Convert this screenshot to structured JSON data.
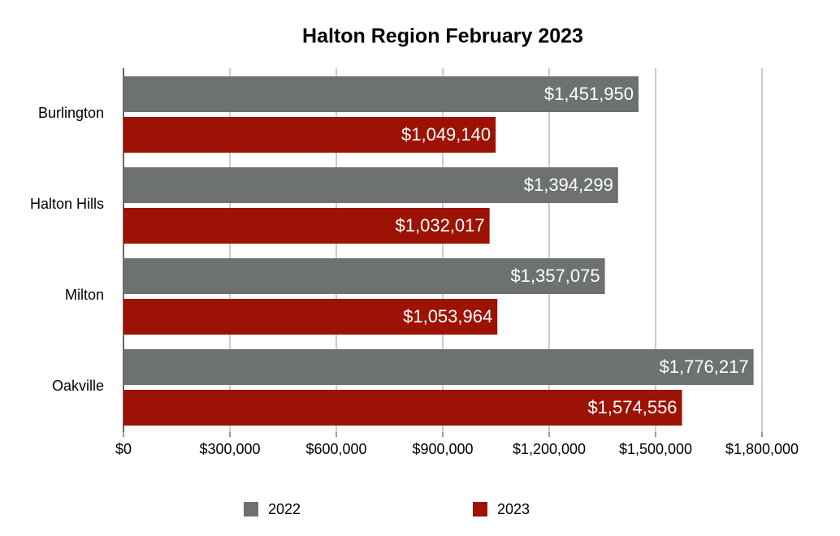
{
  "chart_data": {
    "type": "hbar",
    "title": "Halton Region February 2023",
    "categories": [
      "Burlington",
      "Halton Hills",
      "Milton",
      "Oakville"
    ],
    "series": [
      {
        "name": "2022",
        "color": "#6d726e",
        "values": [
          1451950,
          1394299,
          1357075,
          1776217
        ],
        "value_labels": [
          "$1,451,950",
          "$1,394,299",
          "$1,357,075",
          "$1,776,217"
        ]
      },
      {
        "name": "2023",
        "color": "#9c1306",
        "values": [
          1049140,
          1032017,
          1053964,
          1574556
        ],
        "value_labels": [
          "$1,049,140",
          "$1,032,017",
          "$1,053,964",
          "$1,574,556"
        ]
      }
    ],
    "xlim": [
      0,
      1800000
    ],
    "xticks": [
      {
        "value": 0,
        "label": "$0"
      },
      {
        "value": 300000,
        "label": "$300,000"
      },
      {
        "value": 600000,
        "label": "$600,000"
      },
      {
        "value": 900000,
        "label": "$900,000"
      },
      {
        "value": 1200000,
        "label": "$1,200,000"
      },
      {
        "value": 1500000,
        "label": "$1,500,000"
      },
      {
        "value": 1800000,
        "label": "$1,800,000"
      }
    ],
    "grid": true,
    "legend": "bottom"
  }
}
